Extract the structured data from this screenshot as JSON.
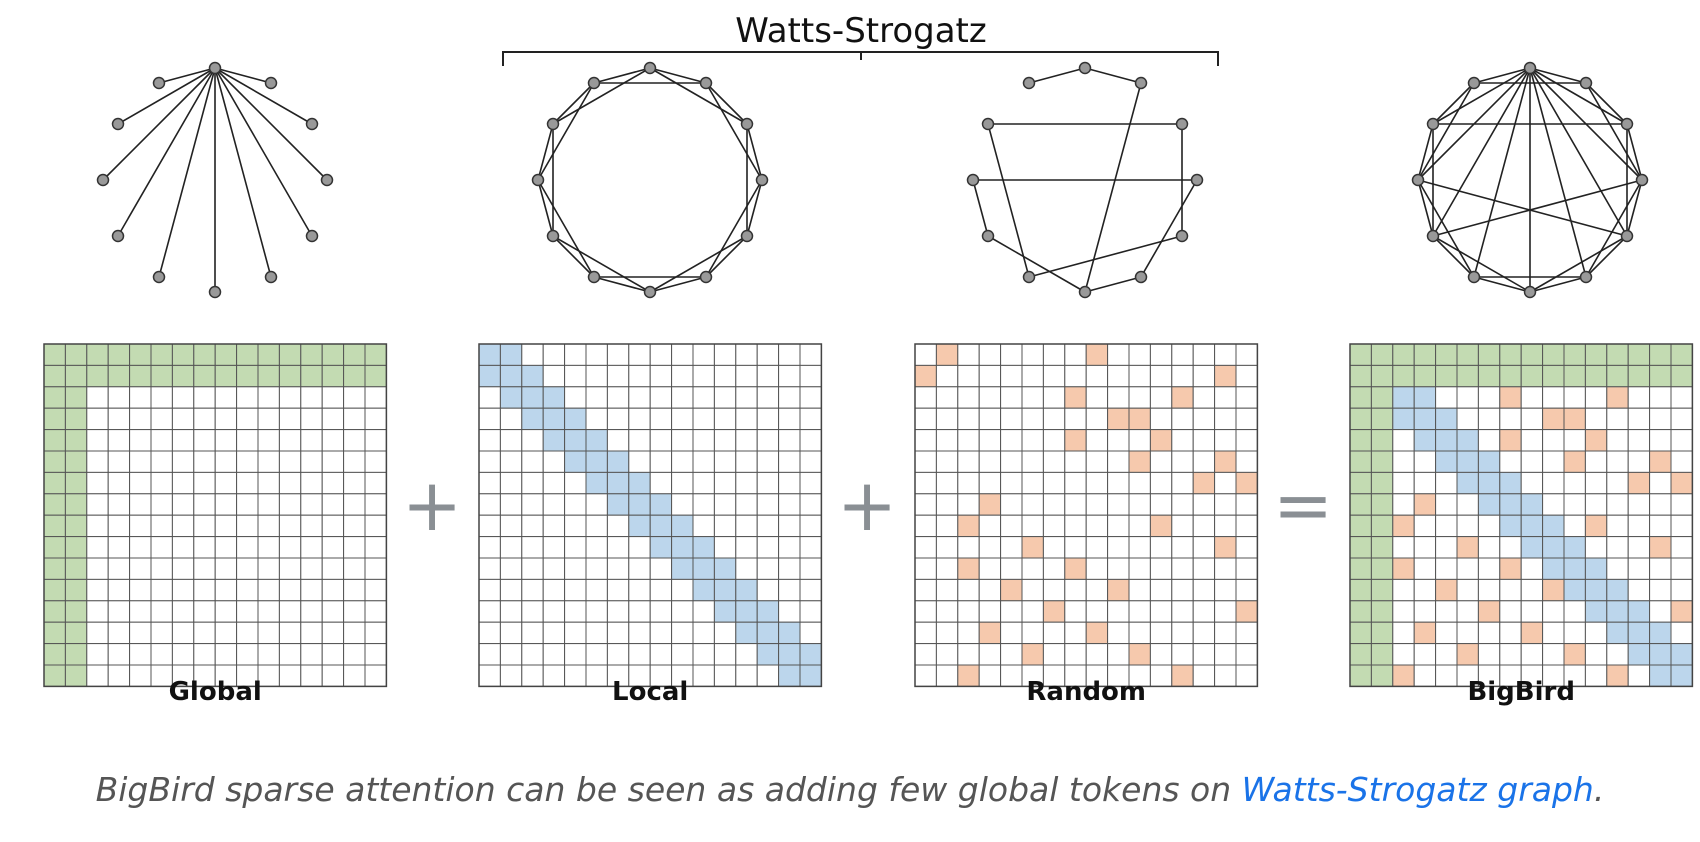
{
  "bracket_label": "Watts-Strogatz",
  "colors": {
    "global": "#c3dbb2",
    "local": "#bcd6ec",
    "random": "#f6c9ad",
    "grid": "#555555",
    "edge": "#222222",
    "node": "#999999"
  },
  "panels": [
    {
      "label": "Global",
      "matrix": "global",
      "graph": "global"
    },
    {
      "label": "Local",
      "matrix": "local",
      "graph": "ring"
    },
    {
      "label": "Random",
      "matrix": "random",
      "graph": "random"
    },
    {
      "label": "BigBird",
      "matrix": "bigbird",
      "graph": "bigbird"
    }
  ],
  "operators": [
    "+",
    "+",
    "="
  ],
  "caption": {
    "text": "BigBird sparse attention can be seen as adding few global tokens on ",
    "link_text": "Watts-Strogatz graph",
    "suffix": "."
  }
}
